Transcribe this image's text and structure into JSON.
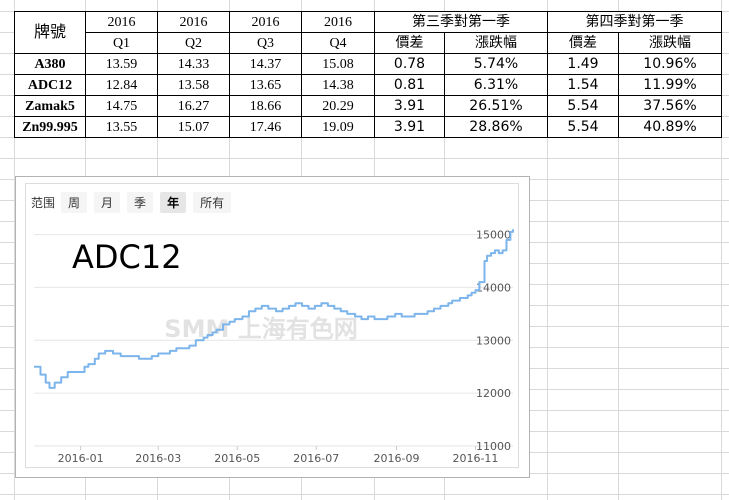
{
  "table": {
    "brand_header": "牌號",
    "year_headers": [
      "2016",
      "2016",
      "2016",
      "2016"
    ],
    "quarter_headers": [
      "Q1",
      "Q2",
      "Q3",
      "Q4"
    ],
    "group_q3": "第三季對第一季",
    "group_q4": "第四季對第一季",
    "sub_headers": [
      "價差",
      "漲跌幅",
      "價差",
      "漲跌幅"
    ],
    "rows": [
      {
        "brand": "A380",
        "q1": "13.59",
        "q2": "14.33",
        "q3": "14.37",
        "q4": "15.08",
        "q3_diff": "0.78",
        "q3_pct": "5.74%",
        "q4_diff": "1.49",
        "q4_pct": "10.96%"
      },
      {
        "brand": "ADC12",
        "q1": "12.84",
        "q2": "13.58",
        "q3": "13.65",
        "q4": "14.38",
        "q3_diff": "0.81",
        "q3_pct": "6.31%",
        "q4_diff": "1.54",
        "q4_pct": "11.99%"
      },
      {
        "brand": "Zamak5",
        "q1": "14.75",
        "q2": "16.27",
        "q3": "18.66",
        "q4": "20.29",
        "q3_diff": "3.91",
        "q3_pct": "26.51%",
        "q4_diff": "5.54",
        "q4_pct": "37.56%"
      },
      {
        "brand": "Zn99.995",
        "q1": "13.55",
        "q2": "15.07",
        "q3": "17.46",
        "q4": "19.09",
        "q3_diff": "3.91",
        "q3_pct": "28.86%",
        "q4_diff": "5.54",
        "q4_pct": "40.89%"
      }
    ]
  },
  "range_selector": {
    "label": "范围",
    "options": [
      "周",
      "月",
      "季",
      "年",
      "所有"
    ],
    "selected": "年"
  },
  "chart_data": {
    "type": "line",
    "title": "ADC12",
    "watermark": "SMM 上海有色网",
    "xlabel": "",
    "ylabel": "",
    "x_ticks": [
      "2016-01",
      "2016-03",
      "2016-05",
      "2016-07",
      "2016-09",
      "2016-11"
    ],
    "y_ticks": [
      "11000",
      "12000",
      "13000",
      "14000",
      "15000"
    ],
    "ylim": [
      11000,
      15200
    ],
    "xlim": [
      "2015-11-26",
      "2016-11-30"
    ],
    "grid": "horizontal",
    "line_color": "#7cb5ec",
    "series": [
      {
        "x": [
          "2015-11-26",
          "2015-12-01",
          "2015-12-05",
          "2015-12-08",
          "2015-12-12",
          "2015-12-17",
          "2015-12-22",
          "2016-01-04",
          "2016-01-07",
          "2016-01-12",
          "2016-01-15",
          "2016-01-20",
          "2016-01-26",
          "2016-02-01",
          "2016-02-10",
          "2016-02-15",
          "2016-02-20",
          "2016-02-25",
          "2016-03-01",
          "2016-03-05",
          "2016-03-10",
          "2016-03-15",
          "2016-03-20",
          "2016-03-25",
          "2016-03-30",
          "2016-04-05",
          "2016-04-08",
          "2016-04-12",
          "2016-04-15",
          "2016-04-20",
          "2016-04-25",
          "2016-04-29",
          "2016-05-05",
          "2016-05-10",
          "2016-05-15",
          "2016-05-20",
          "2016-05-25",
          "2016-05-31",
          "2016-06-05",
          "2016-06-10",
          "2016-06-15",
          "2016-06-20",
          "2016-06-25",
          "2016-06-30",
          "2016-07-05",
          "2016-07-10",
          "2016-07-15",
          "2016-07-20",
          "2016-07-25",
          "2016-07-31",
          "2016-08-05",
          "2016-08-10",
          "2016-08-15",
          "2016-08-20",
          "2016-08-25",
          "2016-08-31",
          "2016-09-05",
          "2016-09-10",
          "2016-09-15",
          "2016-09-20",
          "2016-09-25",
          "2016-09-30",
          "2016-10-05",
          "2016-10-08",
          "2016-10-11",
          "2016-10-14",
          "2016-10-17",
          "2016-10-20",
          "2016-10-23",
          "2016-10-26",
          "2016-10-29",
          "2016-11-01",
          "2016-11-04",
          "2016-11-08",
          "2016-11-10",
          "2016-11-13",
          "2016-11-16",
          "2016-11-19",
          "2016-11-22",
          "2016-11-25",
          "2016-11-28",
          "2016-11-30"
        ],
        "values": [
          12500,
          12350,
          12200,
          12100,
          12200,
          12300,
          12400,
          12500,
          12550,
          12650,
          12750,
          12800,
          12750,
          12700,
          12700,
          12650,
          12650,
          12700,
          12750,
          12750,
          12800,
          12850,
          12850,
          12900,
          13000,
          13050,
          13100,
          13150,
          13200,
          13300,
          13350,
          13400,
          13450,
          13550,
          13600,
          13650,
          13600,
          13550,
          13600,
          13650,
          13700,
          13650,
          13600,
          13650,
          13700,
          13650,
          13600,
          13550,
          13500,
          13450,
          13400,
          13450,
          13400,
          13400,
          13450,
          13500,
          13450,
          13450,
          13500,
          13500,
          13550,
          13600,
          13650,
          13650,
          13700,
          13750,
          13750,
          13800,
          13800,
          13850,
          13900,
          13950,
          14100,
          14500,
          14600,
          14650,
          14700,
          14650,
          14700,
          14900,
          15050,
          15100
        ]
      }
    ]
  }
}
